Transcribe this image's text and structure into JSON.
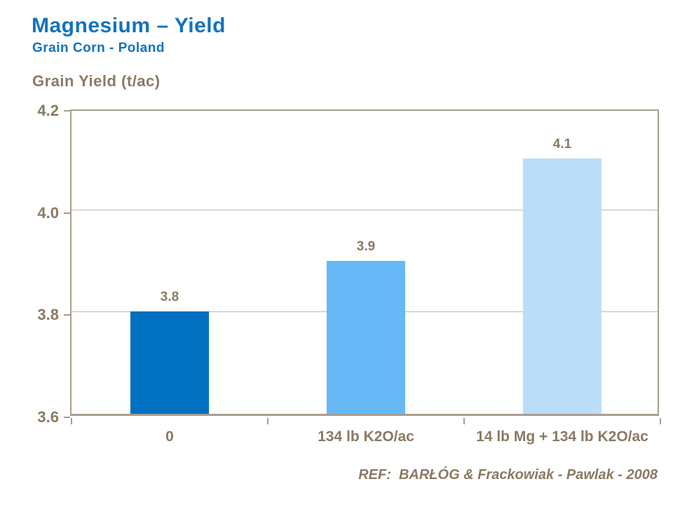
{
  "header": {
    "title": "Magnesium – Yield",
    "subtitle": "Grain Corn - Poland"
  },
  "footer": {
    "ref": "REF:  BARŁÓG & Frackowiak - Pawlak - 2008"
  },
  "colors": {
    "title_blue": "#1273BD",
    "label_taupe": "#8A7A63",
    "axis_taupe": "#A89E90",
    "gridline": "#BEB5A8",
    "bars": [
      "#0070C0",
      "#66B8F7",
      "#BADEF9"
    ]
  },
  "chart_data": {
    "type": "bar",
    "title": "Magnesium – Yield",
    "subtitle": "Grain Corn - Poland",
    "ylabel": "Grain Yield (t/ac)",
    "xlabel": "",
    "categories": [
      "0",
      "134 lb K2O/ac",
      "14 lb Mg + 134 lb K2O/ac"
    ],
    "values": [
      3.8,
      3.9,
      4.1
    ],
    "bar_labels": [
      "3.8",
      "3.9",
      "4.1"
    ],
    "ylim": [
      3.6,
      4.2
    ],
    "yticks": [
      {
        "value": 3.6,
        "label": "3.6"
      },
      {
        "value": 3.8,
        "label": "3.8"
      },
      {
        "value": 4.0,
        "label": "4.0"
      },
      {
        "value": 4.2,
        "label": "4.2"
      }
    ],
    "grid": true,
    "legend": false
  }
}
